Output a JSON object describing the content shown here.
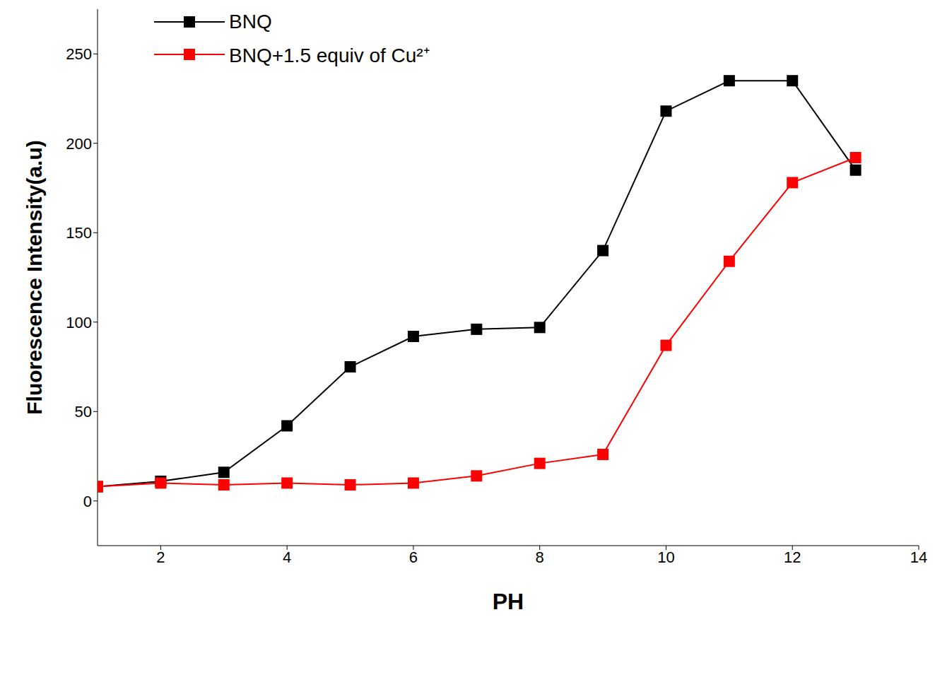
{
  "chart_data": {
    "type": "line",
    "x_label": "PH",
    "y_label": "Fluorescence Intensity(a.u)",
    "x": [
      1,
      2,
      3,
      4,
      5,
      6,
      7,
      8,
      9,
      10,
      11,
      12,
      13
    ],
    "series": [
      {
        "name": "BNQ",
        "color": "#000000",
        "marker": "square",
        "values": [
          8,
          11,
          16,
          42,
          75,
          92,
          96,
          97,
          140,
          218,
          235,
          235,
          185
        ]
      },
      {
        "name": "BNQ+1.5 equiv of Cu²⁺",
        "color": "#ff0000",
        "marker": "square",
        "values": [
          8,
          10,
          9,
          10,
          9,
          10,
          14,
          21,
          26,
          87,
          134,
          178,
          192
        ]
      }
    ],
    "xlim": [
      1,
      14
    ],
    "xticks": [
      2,
      4,
      6,
      8,
      10,
      12,
      14
    ],
    "ylim": [
      -25,
      275
    ],
    "yticks": [
      0,
      50,
      100,
      150,
      200,
      250
    ],
    "legend": "upper left"
  }
}
